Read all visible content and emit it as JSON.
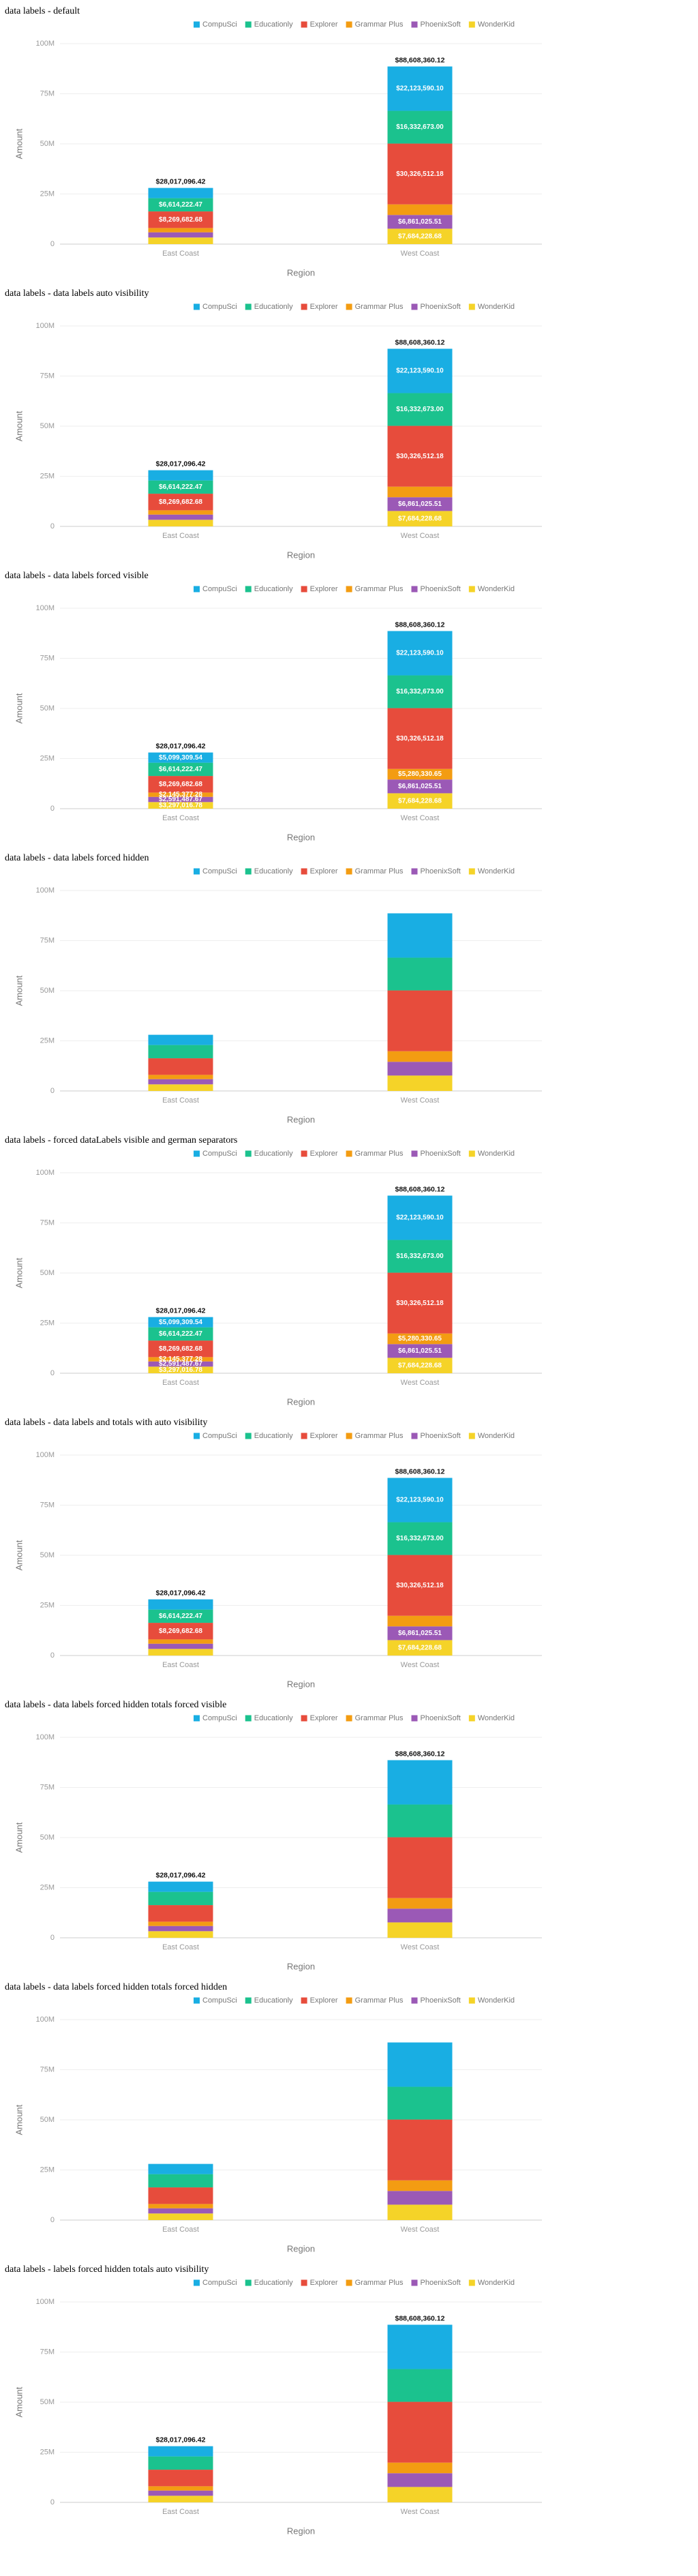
{
  "chart_data": [
    {
      "type": "bar",
      "stacked": true,
      "title": "data labels - default",
      "x_label": "Region",
      "y_label": "Amount",
      "legend": "top",
      "grid": true,
      "categories": [
        "East Coast",
        "West Coast"
      ],
      "ylim": [
        0,
        100000000
      ],
      "yticks": [
        0,
        {
          "value": 25000000,
          "label": "25M"
        },
        {
          "value": 50000000,
          "label": "50M"
        },
        {
          "value": 75000000,
          "label": "75M"
        },
        {
          "value": 100000000,
          "label": "100M"
        }
      ],
      "series": [
        {
          "name": "CompuSci",
          "color": "#19aee3",
          "values": [
            5099309.54,
            22123590.1
          ],
          "value_labels": [
            null,
            "$22,123,590.10"
          ]
        },
        {
          "name": "Educationly",
          "color": "#1bc28e",
          "values": [
            6614222.47,
            16332673.0
          ],
          "value_labels": [
            "$6,614,222.47",
            "$16,332,673.00"
          ]
        },
        {
          "name": "Explorer",
          "color": "#e74c3c",
          "values": [
            8269682.68,
            30326512.18
          ],
          "value_labels": [
            "$8,269,682.68",
            "$30,326,512.18"
          ]
        },
        {
          "name": "Grammar Plus",
          "color": "#f39c12",
          "values": [
            2145377.28,
            5280330.65
          ]
        },
        {
          "name": "PhoenixSoft",
          "color": "#9b59b6",
          "values": [
            2591487.67,
            6861025.51
          ],
          "value_labels": [
            null,
            "$6,861,025.51"
          ]
        },
        {
          "name": "WonderKid",
          "color": "#f5d328",
          "values": [
            3297016.78,
            7684228.68
          ],
          "value_labels": [
            null,
            "$7,684,228.68"
          ]
        }
      ],
      "totals": {
        "values": [
          28017096.42,
          88608360.12
        ],
        "value_labels": [
          "$28,017,096.42",
          "$88,608,360.12"
        ]
      }
    },
    {
      "type": "bar",
      "stacked": true,
      "title": "data labels - data labels auto visibility",
      "x_label": "Region",
      "y_label": "Amount",
      "legend": "top",
      "grid": true,
      "categories": [
        "East Coast",
        "West Coast"
      ],
      "ylim": [
        0,
        100000000
      ],
      "yticks": [
        0,
        {
          "value": 25000000,
          "label": "25M"
        },
        {
          "value": 50000000,
          "label": "50M"
        },
        {
          "value": 75000000,
          "label": "75M"
        },
        {
          "value": 100000000,
          "label": "100M"
        }
      ],
      "series": [
        {
          "name": "CompuSci",
          "color": "#19aee3",
          "values": [
            5099309.54,
            22123590.1
          ],
          "value_labels": [
            null,
            "$22,123,590.10"
          ]
        },
        {
          "name": "Educationly",
          "color": "#1bc28e",
          "values": [
            6614222.47,
            16332673.0
          ],
          "value_labels": [
            "$6,614,222.47",
            "$16,332,673.00"
          ]
        },
        {
          "name": "Explorer",
          "color": "#e74c3c",
          "values": [
            8269682.68,
            30326512.18
          ],
          "value_labels": [
            "$8,269,682.68",
            "$30,326,512.18"
          ]
        },
        {
          "name": "Grammar Plus",
          "color": "#f39c12",
          "values": [
            2145377.28,
            5280330.65
          ]
        },
        {
          "name": "PhoenixSoft",
          "color": "#9b59b6",
          "values": [
            2591487.67,
            6861025.51
          ],
          "value_labels": [
            null,
            "$6,861,025.51"
          ]
        },
        {
          "name": "WonderKid",
          "color": "#f5d328",
          "values": [
            3297016.78,
            7684228.68
          ],
          "value_labels": [
            null,
            "$7,684,228.68"
          ]
        }
      ],
      "totals": {
        "values": [
          28017096.42,
          88608360.12
        ],
        "value_labels": [
          "$28,017,096.42",
          "$88,608,360.12"
        ]
      }
    },
    {
      "type": "bar",
      "stacked": true,
      "title": "data labels - data labels forced visible",
      "x_label": "Region",
      "y_label": "Amount",
      "legend": "top",
      "grid": true,
      "categories": [
        "East Coast",
        "West Coast"
      ],
      "ylim": [
        0,
        100000000
      ],
      "yticks": [
        0,
        {
          "value": 25000000,
          "label": "25M"
        },
        {
          "value": 50000000,
          "label": "50M"
        },
        {
          "value": 75000000,
          "label": "75M"
        },
        {
          "value": 100000000,
          "label": "100M"
        }
      ],
      "series": [
        {
          "name": "CompuSci",
          "color": "#19aee3",
          "values": [
            5099309.54,
            22123590.1
          ],
          "value_labels": [
            "$5,099,309.54",
            "$22,123,590.10"
          ]
        },
        {
          "name": "Educationly",
          "color": "#1bc28e",
          "values": [
            6614222.47,
            16332673.0
          ],
          "value_labels": [
            "$6,614,222.47",
            "$16,332,673.00"
          ]
        },
        {
          "name": "Explorer",
          "color": "#e74c3c",
          "values": [
            8269682.68,
            30326512.18
          ],
          "value_labels": [
            "$8,269,682.68",
            "$30,326,512.18"
          ]
        },
        {
          "name": "Grammar Plus",
          "color": "#f39c12",
          "values": [
            2145377.28,
            5280330.65
          ],
          "value_labels": [
            "$2,145,377.28",
            "$5,280,330.65"
          ]
        },
        {
          "name": "PhoenixSoft",
          "color": "#9b59b6",
          "values": [
            2591487.67,
            6861025.51
          ],
          "value_labels": [
            "$2,591,487.67",
            "$6,861,025.51"
          ]
        },
        {
          "name": "WonderKid",
          "color": "#f5d328",
          "values": [
            3297016.78,
            7684228.68
          ],
          "value_labels": [
            "$3,297,016.78",
            "$7,684,228.68"
          ]
        }
      ],
      "totals": {
        "values": [
          28017096.42,
          88608360.12
        ],
        "value_labels": [
          "$28,017,096.42",
          "$88,608,360.12"
        ]
      }
    },
    {
      "type": "bar",
      "stacked": true,
      "title": "data labels - data labels forced hidden",
      "x_label": "Region",
      "y_label": "Amount",
      "legend": "top",
      "grid": true,
      "categories": [
        "East Coast",
        "West Coast"
      ],
      "ylim": [
        0,
        100000000
      ],
      "yticks": [
        0,
        {
          "value": 25000000,
          "label": "25M"
        },
        {
          "value": 50000000,
          "label": "50M"
        },
        {
          "value": 75000000,
          "label": "75M"
        },
        {
          "value": 100000000,
          "label": "100M"
        }
      ],
      "series": [
        {
          "name": "CompuSci",
          "color": "#19aee3",
          "values": [
            5099309.54,
            22123590.1
          ]
        },
        {
          "name": "Educationly",
          "color": "#1bc28e",
          "values": [
            6614222.47,
            16332673.0
          ]
        },
        {
          "name": "Explorer",
          "color": "#e74c3c",
          "values": [
            8269682.68,
            30326512.18
          ]
        },
        {
          "name": "Grammar Plus",
          "color": "#f39c12",
          "values": [
            2145377.28,
            5280330.65
          ]
        },
        {
          "name": "PhoenixSoft",
          "color": "#9b59b6",
          "values": [
            2591487.67,
            6861025.51
          ]
        },
        {
          "name": "WonderKid",
          "color": "#f5d328",
          "values": [
            3297016.78,
            7684228.68
          ]
        }
      ]
    },
    {
      "type": "bar",
      "stacked": true,
      "title": "data labels - forced dataLabels visible and german separators",
      "x_label": "Region",
      "y_label": "Amount",
      "legend": "top",
      "grid": true,
      "categories": [
        "East Coast",
        "West Coast"
      ],
      "ylim": [
        0,
        100000000
      ],
      "yticks": [
        0,
        {
          "value": 25000000,
          "label": "25M"
        },
        {
          "value": 50000000,
          "label": "50M"
        },
        {
          "value": 75000000,
          "label": "75M"
        },
        {
          "value": 100000000,
          "label": "100M"
        }
      ],
      "series": [
        {
          "name": "CompuSci",
          "color": "#19aee3",
          "values": [
            5099309.54,
            22123590.1
          ],
          "value_labels": [
            "$5,099,309.54",
            "$22,123,590.10"
          ]
        },
        {
          "name": "Educationly",
          "color": "#1bc28e",
          "values": [
            6614222.47,
            16332673.0
          ],
          "value_labels": [
            "$6,614,222.47",
            "$16,332,673.00"
          ]
        },
        {
          "name": "Explorer",
          "color": "#e74c3c",
          "values": [
            8269682.68,
            30326512.18
          ],
          "value_labels": [
            "$8,269,682.68",
            "$30,326,512.18"
          ]
        },
        {
          "name": "Grammar Plus",
          "color": "#f39c12",
          "values": [
            2145377.28,
            5280330.65
          ],
          "value_labels": [
            "$2,145,377.28",
            "$5,280,330.65"
          ]
        },
        {
          "name": "PhoenixSoft",
          "color": "#9b59b6",
          "values": [
            2591487.67,
            6861025.51
          ],
          "value_labels": [
            "$2,591,487.67",
            "$6,861,025.51"
          ]
        },
        {
          "name": "WonderKid",
          "color": "#f5d328",
          "values": [
            3297016.78,
            7684228.68
          ],
          "value_labels": [
            "$3,297,016.78",
            "$7,684,228.68"
          ]
        }
      ],
      "totals": {
        "values": [
          28017096.42,
          88608360.12
        ],
        "value_labels": [
          "$28,017,096.42",
          "$88,608,360.12"
        ]
      }
    },
    {
      "type": "bar",
      "stacked": true,
      "title": "data labels - data labels and totals with auto visibility",
      "x_label": "Region",
      "y_label": "Amount",
      "legend": "top",
      "grid": true,
      "categories": [
        "East Coast",
        "West Coast"
      ],
      "ylim": [
        0,
        100000000
      ],
      "yticks": [
        0,
        {
          "value": 25000000,
          "label": "25M"
        },
        {
          "value": 50000000,
          "label": "50M"
        },
        {
          "value": 75000000,
          "label": "75M"
        },
        {
          "value": 100000000,
          "label": "100M"
        }
      ],
      "series": [
        {
          "name": "CompuSci",
          "color": "#19aee3",
          "values": [
            5099309.54,
            22123590.1
          ],
          "value_labels": [
            null,
            "$22,123,590.10"
          ]
        },
        {
          "name": "Educationly",
          "color": "#1bc28e",
          "values": [
            6614222.47,
            16332673.0
          ],
          "value_labels": [
            "$6,614,222.47",
            "$16,332,673.00"
          ]
        },
        {
          "name": "Explorer",
          "color": "#e74c3c",
          "values": [
            8269682.68,
            30326512.18
          ],
          "value_labels": [
            "$8,269,682.68",
            "$30,326,512.18"
          ]
        },
        {
          "name": "Grammar Plus",
          "color": "#f39c12",
          "values": [
            2145377.28,
            5280330.65
          ]
        },
        {
          "name": "PhoenixSoft",
          "color": "#9b59b6",
          "values": [
            2591487.67,
            6861025.51
          ],
          "value_labels": [
            null,
            "$6,861,025.51"
          ]
        },
        {
          "name": "WonderKid",
          "color": "#f5d328",
          "values": [
            3297016.78,
            7684228.68
          ],
          "value_labels": [
            null,
            "$7,684,228.68"
          ]
        }
      ],
      "totals": {
        "values": [
          28017096.42,
          88608360.12
        ],
        "value_labels": [
          "$28,017,096.42",
          "$88,608,360.12"
        ]
      }
    },
    {
      "type": "bar",
      "stacked": true,
      "title": "data labels - data labels forced hidden totals forced visible",
      "x_label": "Region",
      "y_label": "Amount",
      "legend": "top",
      "grid": true,
      "categories": [
        "East Coast",
        "West Coast"
      ],
      "ylim": [
        0,
        100000000
      ],
      "yticks": [
        0,
        {
          "value": 25000000,
          "label": "25M"
        },
        {
          "value": 50000000,
          "label": "50M"
        },
        {
          "value": 75000000,
          "label": "75M"
        },
        {
          "value": 100000000,
          "label": "100M"
        }
      ],
      "series": [
        {
          "name": "CompuSci",
          "color": "#19aee3",
          "values": [
            5099309.54,
            22123590.1
          ]
        },
        {
          "name": "Educationly",
          "color": "#1bc28e",
          "values": [
            6614222.47,
            16332673.0
          ]
        },
        {
          "name": "Explorer",
          "color": "#e74c3c",
          "values": [
            8269682.68,
            30326512.18
          ]
        },
        {
          "name": "Grammar Plus",
          "color": "#f39c12",
          "values": [
            2145377.28,
            5280330.65
          ]
        },
        {
          "name": "PhoenixSoft",
          "color": "#9b59b6",
          "values": [
            2591487.67,
            6861025.51
          ]
        },
        {
          "name": "WonderKid",
          "color": "#f5d328",
          "values": [
            3297016.78,
            7684228.68
          ]
        }
      ],
      "totals": {
        "values": [
          28017096.42,
          88608360.12
        ],
        "value_labels": [
          "$28,017,096.42",
          "$88,608,360.12"
        ]
      }
    },
    {
      "type": "bar",
      "stacked": true,
      "title": "data labels - data labels forced hidden totals forced hidden",
      "x_label": "Region",
      "y_label": "Amount",
      "legend": "top",
      "grid": true,
      "categories": [
        "East Coast",
        "West Coast"
      ],
      "ylim": [
        0,
        100000000
      ],
      "yticks": [
        0,
        {
          "value": 25000000,
          "label": "25M"
        },
        {
          "value": 50000000,
          "label": "50M"
        },
        {
          "value": 75000000,
          "label": "75M"
        },
        {
          "value": 100000000,
          "label": "100M"
        }
      ],
      "series": [
        {
          "name": "CompuSci",
          "color": "#19aee3",
          "values": [
            5099309.54,
            22123590.1
          ]
        },
        {
          "name": "Educationly",
          "color": "#1bc28e",
          "values": [
            6614222.47,
            16332673.0
          ]
        },
        {
          "name": "Explorer",
          "color": "#e74c3c",
          "values": [
            8269682.68,
            30326512.18
          ]
        },
        {
          "name": "Grammar Plus",
          "color": "#f39c12",
          "values": [
            2145377.28,
            5280330.65
          ]
        },
        {
          "name": "PhoenixSoft",
          "color": "#9b59b6",
          "values": [
            2591487.67,
            6861025.51
          ]
        },
        {
          "name": "WonderKid",
          "color": "#f5d328",
          "values": [
            3297016.78,
            7684228.68
          ]
        }
      ]
    },
    {
      "type": "bar",
      "stacked": true,
      "title": "data labels - labels forced hidden totals auto visibility",
      "x_label": "Region",
      "y_label": "Amount",
      "legend": "top",
      "grid": true,
      "categories": [
        "East Coast",
        "West Coast"
      ],
      "ylim": [
        0,
        100000000
      ],
      "yticks": [
        0,
        {
          "value": 25000000,
          "label": "25M"
        },
        {
          "value": 50000000,
          "label": "50M"
        },
        {
          "value": 75000000,
          "label": "75M"
        },
        {
          "value": 100000000,
          "label": "100M"
        }
      ],
      "series": [
        {
          "name": "CompuSci",
          "color": "#19aee3",
          "values": [
            5099309.54,
            22123590.1
          ]
        },
        {
          "name": "Educationly",
          "color": "#1bc28e",
          "values": [
            6614222.47,
            16332673.0
          ]
        },
        {
          "name": "Explorer",
          "color": "#e74c3c",
          "values": [
            8269682.68,
            30326512.18
          ]
        },
        {
          "name": "Grammar Plus",
          "color": "#f39c12",
          "values": [
            2145377.28,
            5280330.65
          ]
        },
        {
          "name": "PhoenixSoft",
          "color": "#9b59b6",
          "values": [
            2591487.67,
            6861025.51
          ]
        },
        {
          "name": "WonderKid",
          "color": "#f5d328",
          "values": [
            3297016.78,
            7684228.68
          ]
        }
      ],
      "totals": {
        "values": [
          28017096.42,
          88608360.12
        ],
        "value_labels": [
          "$28,017,096.42",
          "$88,608,360.12"
        ]
      }
    }
  ]
}
